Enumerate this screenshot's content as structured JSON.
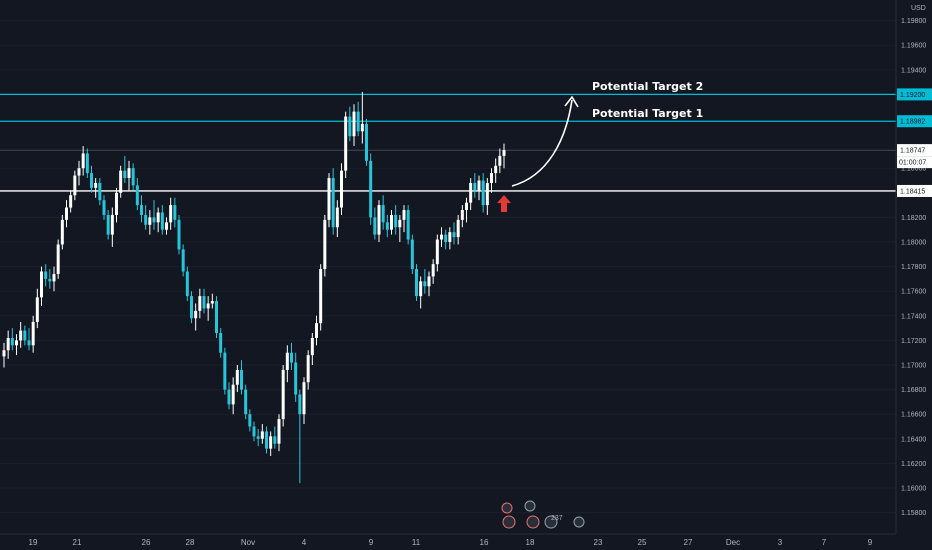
{
  "chart_data": {
    "type": "candlestick",
    "currency": "USD",
    "y_ticks": [
      1.158,
      1.16,
      1.162,
      1.164,
      1.166,
      1.168,
      1.17,
      1.172,
      1.174,
      1.176,
      1.178,
      1.18,
      1.182,
      1.186,
      1.194,
      1.196,
      1.198
    ],
    "y_tick_labels": [
      "1.15800",
      "1.16000",
      "1.16200",
      "1.16400",
      "1.16600",
      "1.16800",
      "1.17000",
      "1.17200",
      "1.17400",
      "1.17600",
      "1.17800",
      "1.18000",
      "1.18200",
      "1.18600",
      "1.19400",
      "1.19600",
      "1.19800"
    ],
    "x_ticks": [
      "19",
      "21",
      "26",
      "28",
      "Nov",
      "4",
      "9",
      "11",
      "16",
      "18",
      "23",
      "25",
      "27",
      "Dec",
      "3",
      "7",
      "9"
    ],
    "levels": [
      {
        "name": "potential-target-2",
        "value": 1.192,
        "label": "1.19200",
        "color": "#00bcd4"
      },
      {
        "name": "potential-target-1",
        "value": 1.18982,
        "label": "1.18982",
        "color": "#00bcd4"
      },
      {
        "name": "current-price",
        "value": 1.18747,
        "label": "1.18747",
        "color": "#787b86"
      },
      {
        "name": "support",
        "value": 1.18415,
        "label": "1.18415",
        "color": "#ffffff"
      }
    ],
    "countdown": "01:00:07",
    "annotations": [
      {
        "text": "Potential Target 2"
      },
      {
        "text": "Potential Target 1"
      }
    ],
    "event_badges": [
      "",
      "",
      "",
      "237",
      ""
    ],
    "up_color": "#ffffff",
    "down_color": "#26c6da",
    "arrow_color": "#e53935",
    "candles": [
      [
        1.1707,
        1.1718,
        1.1698,
        1.1712
      ],
      [
        1.1712,
        1.1728,
        1.1705,
        1.1722
      ],
      [
        1.1722,
        1.173,
        1.1712,
        1.1716
      ],
      [
        1.1716,
        1.1725,
        1.1708,
        1.172
      ],
      [
        1.172,
        1.1735,
        1.1714,
        1.1728
      ],
      [
        1.1728,
        1.1732,
        1.1716,
        1.172
      ],
      [
        1.172,
        1.173,
        1.1712,
        1.1716
      ],
      [
        1.1716,
        1.174,
        1.171,
        1.1735
      ],
      [
        1.1735,
        1.1762,
        1.173,
        1.1755
      ],
      [
        1.1755,
        1.178,
        1.1748,
        1.1776
      ],
      [
        1.1776,
        1.1782,
        1.1764,
        1.177
      ],
      [
        1.177,
        1.1778,
        1.1762,
        1.1768
      ],
      [
        1.1768,
        1.178,
        1.176,
        1.1774
      ],
      [
        1.1774,
        1.1802,
        1.177,
        1.1798
      ],
      [
        1.1798,
        1.1822,
        1.1794,
        1.1818
      ],
      [
        1.1818,
        1.1834,
        1.1812,
        1.1828
      ],
      [
        1.1828,
        1.1842,
        1.1824,
        1.1838
      ],
      [
        1.1838,
        1.1858,
        1.1834,
        1.1854
      ],
      [
        1.1854,
        1.1866,
        1.1846,
        1.186
      ],
      [
        1.186,
        1.1878,
        1.1854,
        1.1872
      ],
      [
        1.1872,
        1.1876,
        1.1852,
        1.1856
      ],
      [
        1.1856,
        1.1862,
        1.184,
        1.1844
      ],
      [
        1.1844,
        1.1852,
        1.1836,
        1.1848
      ],
      [
        1.1848,
        1.1852,
        1.183,
        1.1834
      ],
      [
        1.1834,
        1.1838,
        1.1818,
        1.1822
      ],
      [
        1.1822,
        1.1826,
        1.1802,
        1.1806
      ],
      [
        1.1806,
        1.1828,
        1.1796,
        1.1822
      ],
      [
        1.1822,
        1.1844,
        1.1816,
        1.184
      ],
      [
        1.184,
        1.1862,
        1.1836,
        1.1858
      ],
      [
        1.1858,
        1.187,
        1.1848,
        1.1852
      ],
      [
        1.1852,
        1.1866,
        1.1842,
        1.186
      ],
      [
        1.186,
        1.1864,
        1.1842,
        1.1846
      ],
      [
        1.1846,
        1.1852,
        1.1826,
        1.183
      ],
      [
        1.183,
        1.1838,
        1.1816,
        1.1822
      ],
      [
        1.1822,
        1.183,
        1.181,
        1.1814
      ],
      [
        1.1814,
        1.1826,
        1.1806,
        1.182
      ],
      [
        1.182,
        1.1834,
        1.181,
        1.1816
      ],
      [
        1.1816,
        1.1828,
        1.1808,
        1.1824
      ],
      [
        1.1824,
        1.183,
        1.1806,
        1.181
      ],
      [
        1.181,
        1.182,
        1.1806,
        1.1816
      ],
      [
        1.1816,
        1.1836,
        1.181,
        1.183
      ],
      [
        1.183,
        1.1836,
        1.1812,
        1.1818
      ],
      [
        1.1818,
        1.1822,
        1.179,
        1.1794
      ],
      [
        1.1794,
        1.1798,
        1.1772,
        1.1776
      ],
      [
        1.1776,
        1.178,
        1.1752,
        1.1756
      ],
      [
        1.1756,
        1.176,
        1.1734,
        1.1738
      ],
      [
        1.1738,
        1.175,
        1.1728,
        1.1744
      ],
      [
        1.1744,
        1.1762,
        1.1738,
        1.1756
      ],
      [
        1.1756,
        1.1762,
        1.1742,
        1.1746
      ],
      [
        1.1746,
        1.1756,
        1.1736,
        1.175
      ],
      [
        1.175,
        1.1758,
        1.1746,
        1.1752
      ],
      [
        1.1752,
        1.1756,
        1.1722,
        1.1726
      ],
      [
        1.1726,
        1.173,
        1.1706,
        1.171
      ],
      [
        1.171,
        1.1714,
        1.1676,
        1.168
      ],
      [
        1.168,
        1.1686,
        1.1664,
        1.1668
      ],
      [
        1.1668,
        1.169,
        1.166,
        1.1684
      ],
      [
        1.1684,
        1.17,
        1.1678,
        1.1696
      ],
      [
        1.1696,
        1.1704,
        1.1676,
        1.168
      ],
      [
        1.168,
        1.1684,
        1.1656,
        1.166
      ],
      [
        1.166,
        1.1664,
        1.1646,
        1.165
      ],
      [
        1.165,
        1.1654,
        1.1638,
        1.1642
      ],
      [
        1.1642,
        1.1648,
        1.1634,
        1.164
      ],
      [
        1.164,
        1.1652,
        1.1636,
        1.1646
      ],
      [
        1.1646,
        1.165,
        1.1628,
        1.1632
      ],
      [
        1.1632,
        1.1646,
        1.1626,
        1.1642
      ],
      [
        1.1642,
        1.165,
        1.1632,
        1.1636
      ],
      [
        1.1636,
        1.166,
        1.163,
        1.1656
      ],
      [
        1.1656,
        1.17,
        1.165,
        1.1696
      ],
      [
        1.1696,
        1.1716,
        1.1686,
        1.171
      ],
      [
        1.171,
        1.1718,
        1.1696,
        1.1702
      ],
      [
        1.1702,
        1.171,
        1.167,
        1.1676
      ],
      [
        1.1676,
        1.168,
        1.1604,
        1.166
      ],
      [
        1.166,
        1.169,
        1.1652,
        1.1686
      ],
      [
        1.1686,
        1.1712,
        1.168,
        1.1708
      ],
      [
        1.1708,
        1.1726,
        1.17,
        1.1722
      ],
      [
        1.1722,
        1.174,
        1.1716,
        1.1734
      ],
      [
        1.1734,
        1.1782,
        1.1728,
        1.1778
      ],
      [
        1.1778,
        1.1822,
        1.1772,
        1.1818
      ],
      [
        1.1818,
        1.1856,
        1.1812,
        1.1852
      ],
      [
        1.1852,
        1.186,
        1.1806,
        1.1812
      ],
      [
        1.1812,
        1.1834,
        1.1804,
        1.1828
      ],
      [
        1.1828,
        1.1864,
        1.1822,
        1.1858
      ],
      [
        1.1858,
        1.1906,
        1.1852,
        1.1902
      ],
      [
        1.1902,
        1.191,
        1.1882,
        1.1886
      ],
      [
        1.1886,
        1.1912,
        1.1878,
        1.1906
      ],
      [
        1.1906,
        1.1914,
        1.1886,
        1.189
      ],
      [
        1.189,
        1.1922,
        1.188,
        1.1896
      ],
      [
        1.1896,
        1.19,
        1.1862,
        1.1866
      ],
      [
        1.1866,
        1.1872,
        1.1814,
        1.182
      ],
      [
        1.182,
        1.1828,
        1.1802,
        1.1806
      ],
      [
        1.1806,
        1.1834,
        1.18,
        1.183
      ],
      [
        1.183,
        1.1838,
        1.181,
        1.1816
      ],
      [
        1.1816,
        1.1822,
        1.1804,
        1.181
      ],
      [
        1.181,
        1.1826,
        1.1806,
        1.1822
      ],
      [
        1.1822,
        1.183,
        1.1806,
        1.1812
      ],
      [
        1.1812,
        1.1822,
        1.18,
        1.1818
      ],
      [
        1.1818,
        1.183,
        1.1808,
        1.1826
      ],
      [
        1.1826,
        1.183,
        1.1798,
        1.1802
      ],
      [
        1.1802,
        1.1806,
        1.1774,
        1.1778
      ],
      [
        1.1778,
        1.1782,
        1.1752,
        1.1756
      ],
      [
        1.1756,
        1.1772,
        1.1746,
        1.1768
      ],
      [
        1.1768,
        1.1778,
        1.1758,
        1.1764
      ],
      [
        1.1764,
        1.1776,
        1.1756,
        1.1772
      ],
      [
        1.1772,
        1.1786,
        1.1766,
        1.1782
      ],
      [
        1.1782,
        1.1806,
        1.1776,
        1.1802
      ],
      [
        1.1802,
        1.1812,
        1.1796,
        1.1806
      ],
      [
        1.1806,
        1.181,
        1.1794,
        1.18
      ],
      [
        1.18,
        1.1812,
        1.1794,
        1.1808
      ],
      [
        1.1808,
        1.1816,
        1.1798,
        1.1804
      ],
      [
        1.1804,
        1.1822,
        1.1798,
        1.1818
      ],
      [
        1.1818,
        1.183,
        1.1812,
        1.1826
      ],
      [
        1.1826,
        1.1836,
        1.1816,
        1.1832
      ],
      [
        1.1832,
        1.1852,
        1.1826,
        1.1848
      ],
      [
        1.1848,
        1.1856,
        1.1836,
        1.1842
      ],
      [
        1.1842,
        1.1854,
        1.1834,
        1.185
      ],
      [
        1.185,
        1.1856,
        1.1824,
        1.183
      ],
      [
        1.183,
        1.1852,
        1.1822,
        1.1848
      ],
      [
        1.1848,
        1.186,
        1.184,
        1.1856
      ],
      [
        1.1856,
        1.1868,
        1.1848,
        1.1862
      ],
      [
        1.1862,
        1.1876,
        1.1856,
        1.187
      ],
      [
        1.187,
        1.188,
        1.186,
        1.18747
      ]
    ]
  }
}
